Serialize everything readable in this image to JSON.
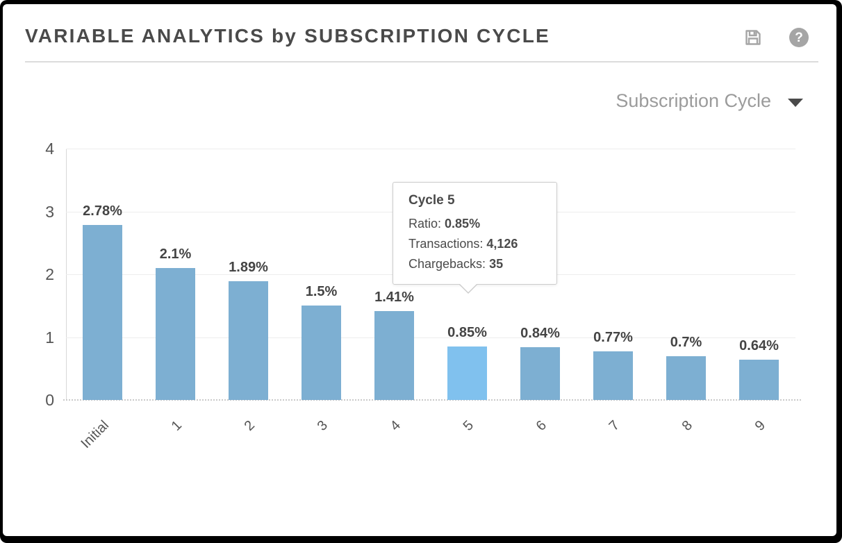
{
  "header": {
    "title": "VARIABLE ANALYTICS by SUBSCRIPTION CYCLE",
    "icons": {
      "save": "floppy-disk",
      "help": "question-mark"
    },
    "help_glyph": "?"
  },
  "filter": {
    "selected": "Subscription Cycle",
    "caret_icon": "chevron-down"
  },
  "tooltip": {
    "title": "Cycle 5",
    "rows": [
      {
        "label": "Ratio:",
        "value": "0.85%"
      },
      {
        "label": "Transactions:",
        "value": "4,126"
      },
      {
        "label": "Chargebacks:",
        "value": "35"
      }
    ]
  },
  "chart_data": {
    "type": "bar",
    "title": "VARIABLE ANALYTICS by SUBSCRIPTION CYCLE",
    "categories": [
      "Initial",
      "1",
      "2",
      "3",
      "4",
      "5",
      "6",
      "7",
      "8",
      "9"
    ],
    "values": [
      2.78,
      2.1,
      1.89,
      1.5,
      1.41,
      0.85,
      0.84,
      0.77,
      0.7,
      0.64
    ],
    "bar_labels": [
      "2.78%",
      "2.1%",
      "1.89%",
      "1.5%",
      "1.41%",
      "0.85%",
      "0.84%",
      "0.77%",
      "0.7%",
      "0.64%"
    ],
    "highlighted_index": 5,
    "xlabel": "",
    "ylabel": "",
    "ylim": [
      0,
      4
    ],
    "yticks": [
      4,
      3,
      2,
      1,
      0
    ],
    "grid": "horizontal",
    "legend": "none",
    "colors": {
      "bar": "#7dafd2",
      "bar_highlight": "#80c1ee",
      "bar_label_text": "#444444",
      "axis_text": "#555555",
      "gridline": "#ededed",
      "title_text": "#4a4a4a",
      "dropdown_text": "#9b9b9b",
      "icon_gray": "#a5a5a5"
    }
  }
}
